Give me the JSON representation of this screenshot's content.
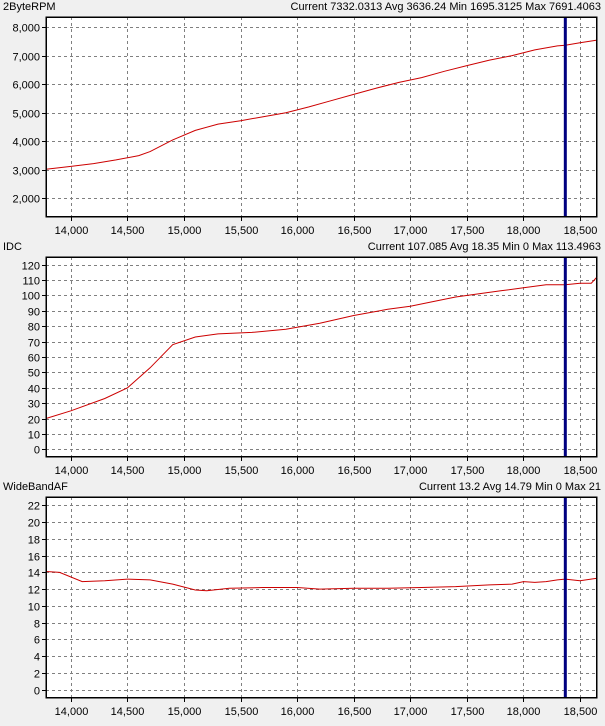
{
  "colors": {
    "series": "#cc0000",
    "cursor": "#000080",
    "background": "#ffffff",
    "grid": "#808080"
  },
  "chart_data": [
    {
      "type": "line",
      "title": "2ByteRPM",
      "stats": "Current 7332.0313 Avg 3636.24 Min 1695.3125 Max 7691.4063",
      "grid": true,
      "xlim": [
        13780,
        18650
      ],
      "ylim": [
        1350,
        8350
      ],
      "x_ticks": [
        14000,
        14500,
        15000,
        15500,
        16000,
        16500,
        17000,
        17500,
        18000,
        18500
      ],
      "x_tick_labels": [
        "14,000",
        "14,500",
        "15,000",
        "15,500",
        "16,000",
        "16,500",
        "17,000",
        "17,500",
        "18,000",
        "18,500"
      ],
      "y_ticks": [
        2000,
        3000,
        4000,
        5000,
        6000,
        7000,
        8000
      ],
      "y_tick_labels": [
        "2,000",
        "3,000",
        "4,000",
        "5,000",
        "6,000",
        "7,000",
        "8,000"
      ],
      "cursor_x": 18370,
      "series": [
        {
          "x": [
            13780,
            14000,
            14200,
            14400,
            14600,
            14700,
            14900,
            15100,
            15300,
            15500,
            15700,
            15900,
            16100,
            16300,
            16500,
            16700,
            16900,
            17100,
            17300,
            17500,
            17700,
            17900,
            18100,
            18300,
            18370,
            18500,
            18650
          ],
          "y": [
            3020,
            3120,
            3220,
            3350,
            3500,
            3640,
            4050,
            4380,
            4600,
            4720,
            4860,
            5000,
            5200,
            5420,
            5640,
            5860,
            6060,
            6230,
            6450,
            6650,
            6840,
            7000,
            7200,
            7340,
            7360,
            7450,
            7540
          ]
        }
      ]
    },
    {
      "type": "line",
      "title": "IDC",
      "stats": "Current 107.085 Avg 18.35 Min 0 Max 113.4963",
      "grid": true,
      "xlim": [
        13780,
        18650
      ],
      "ylim": [
        -5,
        125
      ],
      "x_ticks": [
        14000,
        14500,
        15000,
        15500,
        16000,
        16500,
        17000,
        17500,
        18000,
        18500
      ],
      "x_tick_labels": [
        "14,000",
        "14,500",
        "15,000",
        "15,500",
        "16,000",
        "16,500",
        "17,000",
        "17,500",
        "18,000",
        "18,500"
      ],
      "y_ticks": [
        0,
        10,
        20,
        30,
        40,
        50,
        60,
        70,
        80,
        90,
        100,
        110,
        120
      ],
      "y_tick_labels": [
        "0",
        "10",
        "20",
        "30",
        "40",
        "50",
        "60",
        "70",
        "80",
        "90",
        "100",
        "110",
        "120"
      ],
      "cursor_x": 18370,
      "series": [
        {
          "x": [
            13780,
            14000,
            14300,
            14500,
            14700,
            14900,
            15100,
            15300,
            15600,
            15900,
            16200,
            16500,
            16800,
            17000,
            17200,
            17400,
            17600,
            17800,
            18000,
            18200,
            18370,
            18500,
            18600,
            18650
          ],
          "y": [
            20,
            25,
            33,
            40,
            53,
            68,
            73,
            75,
            76,
            78,
            82,
            87,
            91,
            93,
            96,
            99,
            101,
            103,
            105,
            107,
            107,
            108,
            108,
            112
          ]
        }
      ]
    },
    {
      "type": "line",
      "title": "WideBandAF",
      "stats": "Current 13.2 Avg 14.79 Min 0 Max 21",
      "grid": true,
      "xlim": [
        13780,
        18650
      ],
      "ylim": [
        -1,
        23
      ],
      "x_ticks": [
        14000,
        14500,
        15000,
        15500,
        16000,
        16500,
        17000,
        17500,
        18000,
        18500
      ],
      "x_tick_labels": [
        "14,000",
        "14,500",
        "15,000",
        "15,500",
        "16,000",
        "16,500",
        "17,000",
        "17,500",
        "18,000",
        "18,500"
      ],
      "y_ticks": [
        0,
        2,
        4,
        6,
        8,
        10,
        12,
        14,
        16,
        18,
        20,
        22
      ],
      "y_tick_labels": [
        "0",
        "2",
        "4",
        "6",
        "8",
        "10",
        "12",
        "14",
        "16",
        "18",
        "20",
        "22"
      ],
      "cursor_x": 18370,
      "series": [
        {
          "x": [
            13780,
            13900,
            14100,
            14300,
            14500,
            14700,
            14900,
            15100,
            15200,
            15400,
            15700,
            16000,
            16200,
            16500,
            16800,
            17100,
            17400,
            17700,
            17900,
            18000,
            18100,
            18200,
            18300,
            18370,
            18500,
            18650
          ],
          "y": [
            14.1,
            14.0,
            12.9,
            13.0,
            13.2,
            13.1,
            12.6,
            11.9,
            11.8,
            12.1,
            12.2,
            12.2,
            12.0,
            12.1,
            12.1,
            12.2,
            12.3,
            12.5,
            12.6,
            12.9,
            12.8,
            12.9,
            13.1,
            13.2,
            13.0,
            13.3
          ]
        }
      ]
    }
  ]
}
